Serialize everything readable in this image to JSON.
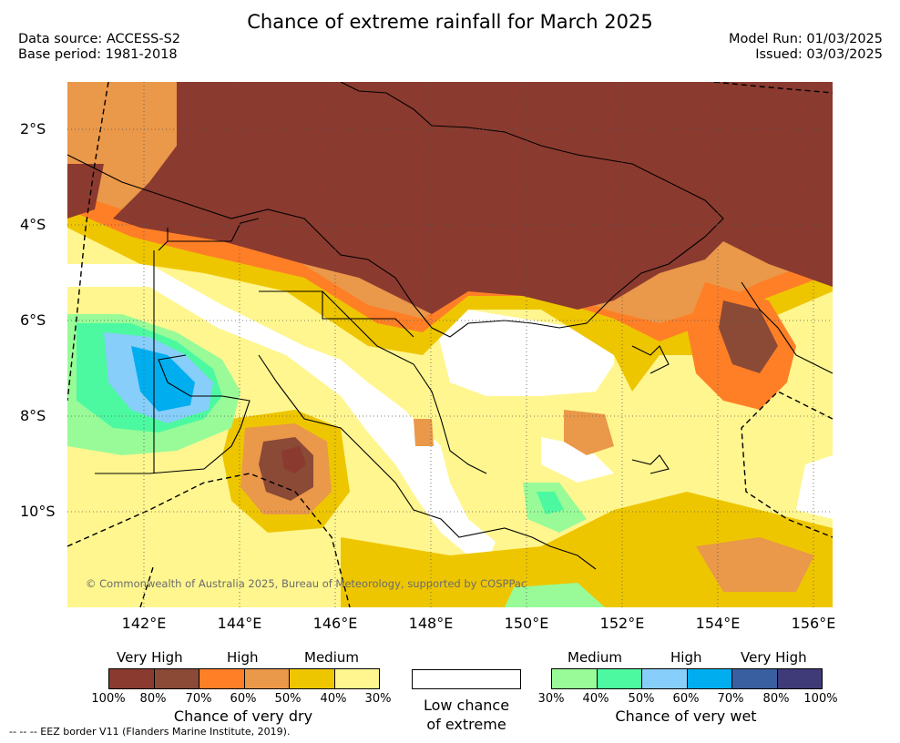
{
  "title": "Chance of extreme rainfall for March 2025",
  "meta": {
    "data_source": "Data source: ACCESS-S2",
    "base_period": "Base period: 1981-2018",
    "model_run": "Model Run: 01/03/2025",
    "issued": "Issued: 03/03/2025"
  },
  "map": {
    "lat_labels": [
      "2°S",
      "4°S",
      "6°S",
      "8°S",
      "10°S"
    ],
    "lon_labels": [
      "142°E",
      "144°E",
      "146°E",
      "148°E",
      "150°E",
      "152°E",
      "154°E",
      "156°E"
    ],
    "copyright": "© Commonwealth of Australia 2025, Bureau of Meteorology, supported by COSPPac",
    "grid_lines": "dotted",
    "eez_border": "dashed"
  },
  "legend": {
    "dry": {
      "levels": [
        "Very High",
        "High",
        "Medium"
      ],
      "colors": [
        "#8B3A2F",
        "#8A4A36",
        "#FF7F27",
        "#EA9849",
        "#EEC600",
        "#FFF68F"
      ],
      "ticks": [
        "100%",
        "80%",
        "70%",
        "60%",
        "50%",
        "40%",
        "30%"
      ],
      "title": "Chance of very dry"
    },
    "low": {
      "color": "#FFFFFF",
      "line1": "Low chance",
      "line2": "of extreme"
    },
    "wet": {
      "levels": [
        "Medium",
        "High",
        "Very High"
      ],
      "colors": [
        "#98FB98",
        "#4CF9A0",
        "#87CEFA",
        "#00AEEF",
        "#3A5FA0",
        "#3F3A78"
      ],
      "ticks": [
        "30%",
        "40%",
        "50%",
        "60%",
        "70%",
        "80%",
        "100%"
      ],
      "title": "Chance of very wet"
    }
  },
  "eez_note": "-- -- -- EEZ border V11 (Flanders Marine Institute, 2019)."
}
